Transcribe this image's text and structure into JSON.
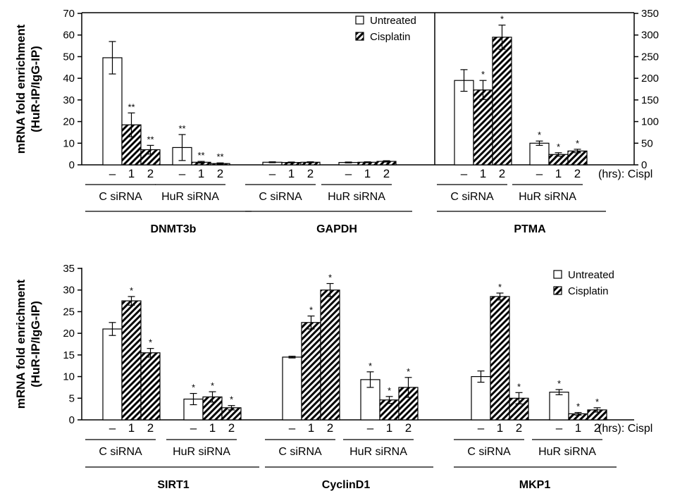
{
  "legend": {
    "untreated": "Untreated",
    "cisplatin": "Cisplatin"
  },
  "hrs_label": "(hrs): Cispl",
  "sirna": {
    "control": "C siRNA",
    "hur": "HuR siRNA"
  },
  "time_labels": [
    "–",
    "1",
    "2"
  ],
  "chart_data": [
    {
      "type": "bar",
      "panel": "top",
      "ylabel": "mRNA fold enrichment (HuR-IP/IgG-IP)",
      "ylabel_lines": [
        "mRNA fold enrichment",
        "(HuR-IP/IgG-IP)"
      ],
      "ylim": [
        0,
        70
      ],
      "yticks": [
        "0",
        "10",
        "20",
        "30",
        "40",
        "50",
        "60",
        "70"
      ],
      "right_axis": {
        "ylim": [
          0,
          350
        ],
        "yticks": [
          "0",
          "50",
          "100",
          "150",
          "200",
          "250",
          "300",
          "350"
        ],
        "applies_to": "PTMA"
      },
      "legend_position": "top-center",
      "categories": [
        "–",
        "1",
        "2"
      ],
      "series": [
        {
          "name": "Untreated"
        },
        {
          "name": "Cisplatin"
        }
      ],
      "genes": [
        {
          "name": "DNMT3b",
          "axis": "left",
          "groups": [
            {
              "sirna": "C siRNA",
              "values": [
                49.5,
                18.5,
                7
              ],
              "errors": [
                7.5,
                5.5,
                2
              ],
              "sig": [
                "",
                "**",
                "**"
              ]
            },
            {
              "sirna": "HuR siRNA",
              "values": [
                8,
                1.2,
                0.6
              ],
              "errors": [
                6,
                0.4,
                0.3
              ],
              "sig": [
                "**",
                "**",
                "**"
              ]
            }
          ]
        },
        {
          "name": "GAPDH",
          "axis": "left",
          "groups": [
            {
              "sirna": "C siRNA",
              "values": [
                1.2,
                1.1,
                1.2
              ],
              "errors": [
                0.2,
                0.2,
                0.2
              ],
              "sig": [
                "",
                "",
                ""
              ]
            },
            {
              "sirna": "HuR siRNA",
              "values": [
                1.1,
                1.2,
                1.6
              ],
              "errors": [
                0.2,
                0.2,
                0.3
              ],
              "sig": [
                "",
                "",
                ""
              ]
            }
          ]
        },
        {
          "name": "PTMA",
          "axis": "right",
          "groups": [
            {
              "sirna": "C siRNA",
              "values": [
                195,
                173,
                295
              ],
              "errors": [
                25,
                22,
                28
              ],
              "sig": [
                "",
                "*",
                "*"
              ]
            },
            {
              "sirna": "HuR siRNA",
              "values": [
                50,
                24,
                32
              ],
              "errors": [
                5,
                4,
                4
              ],
              "sig": [
                "*",
                "*",
                "*"
              ]
            }
          ]
        }
      ]
    },
    {
      "type": "bar",
      "panel": "bottom",
      "ylabel": "mRNA fold enrichment (HuR-IP/IgG-IP)",
      "ylabel_lines": [
        "mRNA fold enrichment",
        "(HuR-IP/IgG-IP)"
      ],
      "ylim": [
        0,
        35
      ],
      "yticks": [
        "0",
        "5",
        "10",
        "15",
        "20",
        "25",
        "30",
        "35"
      ],
      "legend_position": "top-right",
      "categories": [
        "–",
        "1",
        "2"
      ],
      "series": [
        {
          "name": "Untreated"
        },
        {
          "name": "Cisplatin"
        }
      ],
      "genes": [
        {
          "name": "SIRT1",
          "groups": [
            {
              "sirna": "C siRNA",
              "values": [
                21,
                27.5,
                15.5
              ],
              "errors": [
                1.5,
                1.0,
                1.0
              ],
              "sig": [
                "",
                "*",
                "*"
              ]
            },
            {
              "sirna": "HuR siRNA",
              "values": [
                4.8,
                5.3,
                2.8
              ],
              "errors": [
                1.3,
                1.2,
                0.5
              ],
              "sig": [
                "*",
                "*",
                "*"
              ]
            }
          ]
        },
        {
          "name": "CyclinD1",
          "groups": [
            {
              "sirna": "C siRNA",
              "values": [
                14.5,
                22.5,
                30
              ],
              "errors": [
                0.2,
                1.5,
                1.5
              ],
              "sig": [
                "",
                "*",
                "*"
              ]
            },
            {
              "sirna": "HuR siRNA",
              "values": [
                9.3,
                4.6,
                7.5
              ],
              "errors": [
                1.8,
                0.8,
                2.3
              ],
              "sig": [
                "*",
                "*",
                "*"
              ]
            }
          ]
        },
        {
          "name": "MKP1",
          "groups": [
            {
              "sirna": "C siRNA",
              "values": [
                10,
                28.5,
                5
              ],
              "errors": [
                1.3,
                0.8,
                1.3
              ],
              "sig": [
                "",
                "*",
                "*"
              ]
            },
            {
              "sirna": "HuR siRNA",
              "values": [
                6.4,
                1.4,
                2.3
              ],
              "errors": [
                0.6,
                0.3,
                0.5
              ],
              "sig": [
                "*",
                "*",
                "*"
              ]
            }
          ]
        }
      ]
    }
  ]
}
